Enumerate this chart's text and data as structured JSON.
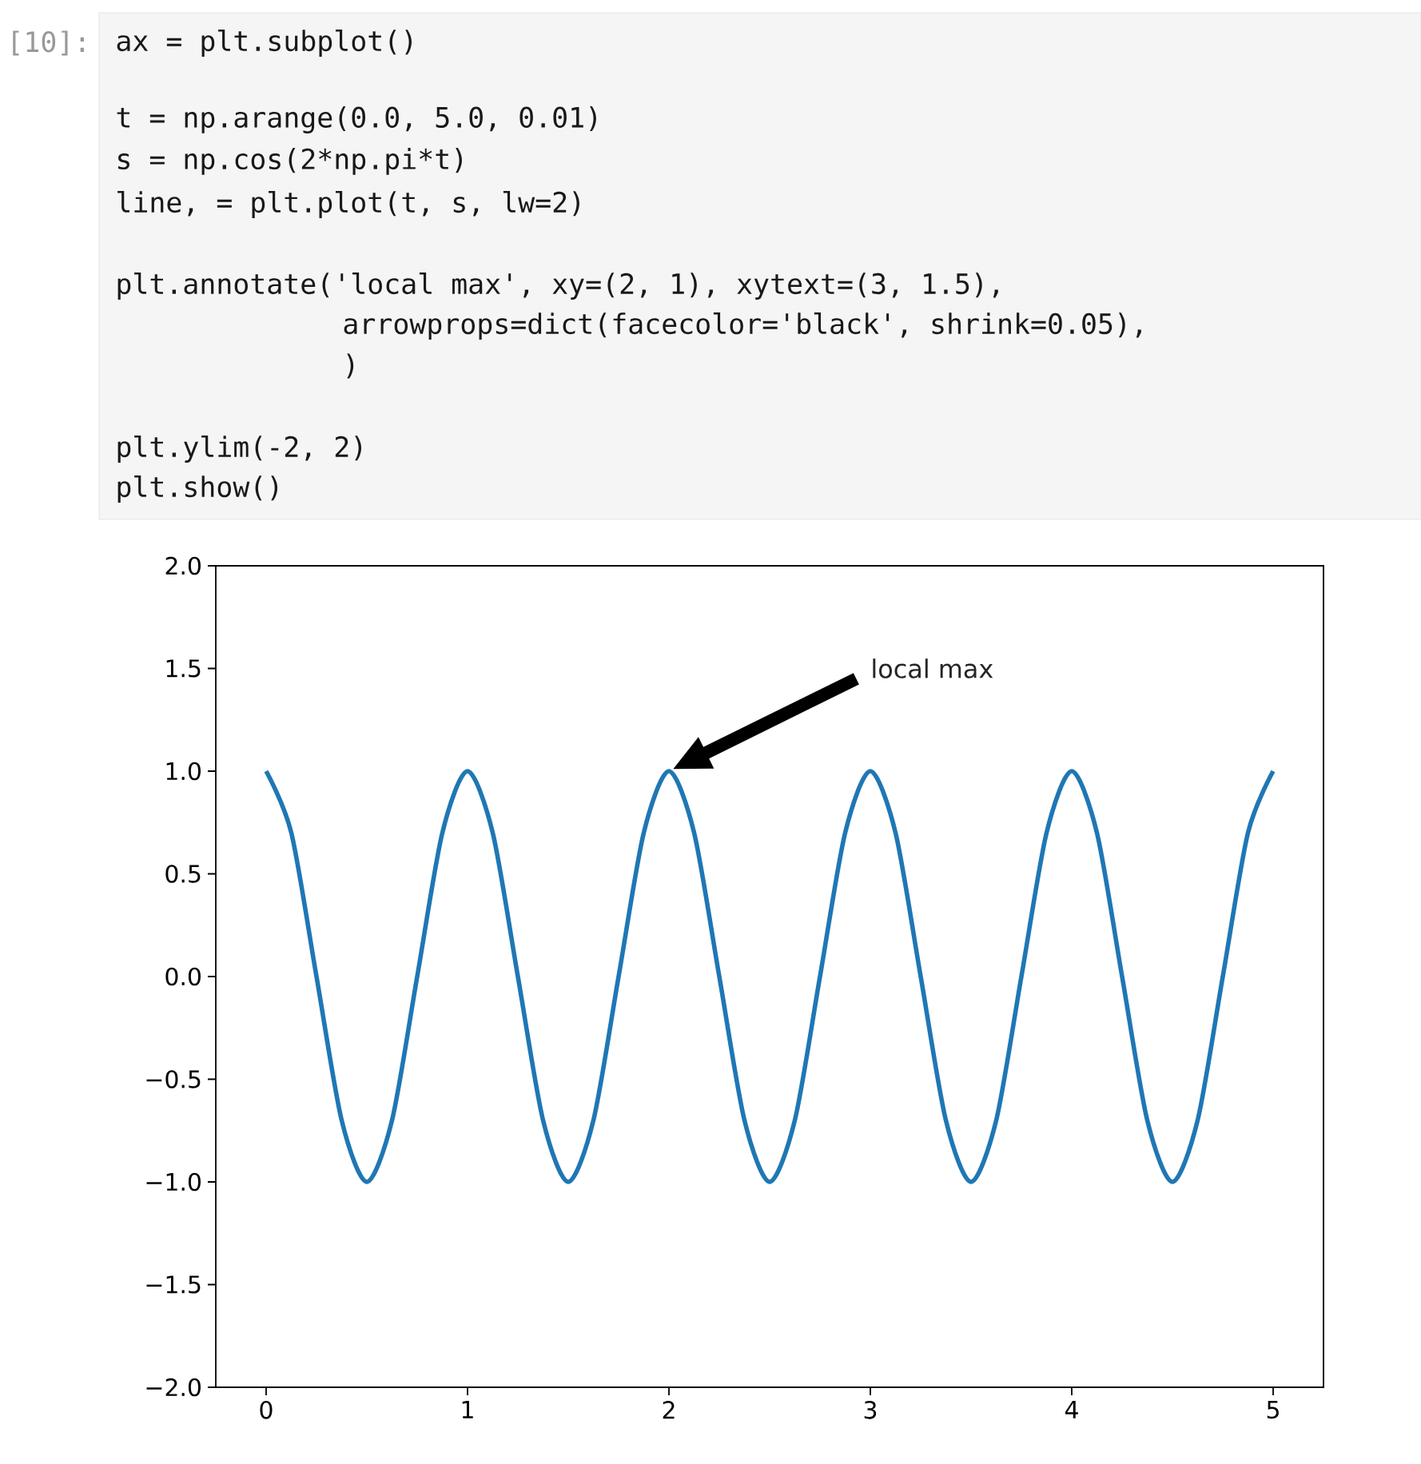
{
  "chart_data": {
    "type": "line",
    "x": [
      0,
      0.125,
      0.25,
      0.375,
      0.5,
      0.625,
      0.75,
      0.875,
      1,
      1.125,
      1.25,
      1.375,
      1.5,
      1.625,
      1.75,
      1.875,
      2,
      2.125,
      2.25,
      2.375,
      2.5,
      2.625,
      2.75,
      2.875,
      3,
      3.125,
      3.25,
      3.375,
      3.5,
      3.625,
      3.75,
      3.875,
      4,
      4.125,
      4.25,
      4.375,
      4.5,
      4.625,
      4.75,
      4.875,
      5
    ],
    "series": [
      {
        "color": "#1f77b4",
        "values": [
          1,
          0.7,
          0,
          -0.7,
          -1,
          -0.7,
          0,
          0.7,
          1,
          0.7,
          0,
          -0.7,
          -1,
          -0.7,
          0,
          0.7,
          1,
          0.7,
          0,
          -0.7,
          -1,
          -0.7,
          0,
          0.7,
          1,
          0.7,
          0,
          -0.7,
          -1,
          -0.7,
          0,
          0.7,
          1,
          0.7,
          0,
          -0.7,
          -1,
          -0.7,
          0,
          0.7,
          1
        ]
      }
    ],
    "xlim": [
      -0.25,
      5.25
    ],
    "ylim": [
      -2,
      2
    ],
    "xticks": [
      0,
      1,
      2,
      3,
      4,
      5
    ],
    "yticks": [
      {
        "value": -2,
        "label": "−2.0"
      },
      {
        "value": -1.5,
        "label": "−1.5"
      },
      {
        "value": -1,
        "label": "−1.0"
      },
      {
        "value": -0.5,
        "label": "−0.5"
      },
      {
        "value": 0,
        "label": "0.0"
      },
      {
        "value": 0.5,
        "label": "0.5"
      },
      {
        "value": 1,
        "label": "1.0"
      },
      {
        "value": 1.5,
        "label": "1.5"
      },
      {
        "value": 2,
        "label": "2.0"
      }
    ],
    "grid": false,
    "annotations": [
      "local max",
      "[10]:",
      "ax = plt.subplot()",
      "t = np.arange(0.0, 5.0, 0.01)",
      "s = np.cos(2*np.pi*t)",
      "line, = plt.plot(t, s, lw=2)",
      "plt.annotate('local max', xy=(2, 1), xytext=(3, 1.5),",
      "arrowprops=dict(facecolor='black', shrink=0.05),",
      ")",
      "plt.ylim(-2, 2)",
      "plt.show()"
    ]
  }
}
